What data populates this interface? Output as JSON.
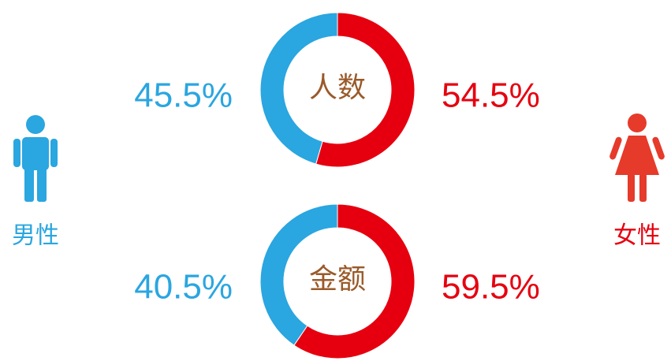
{
  "chart_data": [
    {
      "type": "pie",
      "title": "人数",
      "categories": [
        "男性",
        "女性"
      ],
      "values": [
        45.5,
        54.5
      ],
      "value_labels": [
        "45.5%",
        "54.5%"
      ],
      "colors": [
        "#2aa6e0",
        "#e6000f"
      ]
    },
    {
      "type": "pie",
      "title": "金额",
      "values": [
        40.5,
        59.5
      ],
      "value_labels": [
        "40.5%",
        "59.5%"
      ],
      "colors": [
        "#2aa6e0",
        "#e6000f"
      ]
    }
  ]
}
